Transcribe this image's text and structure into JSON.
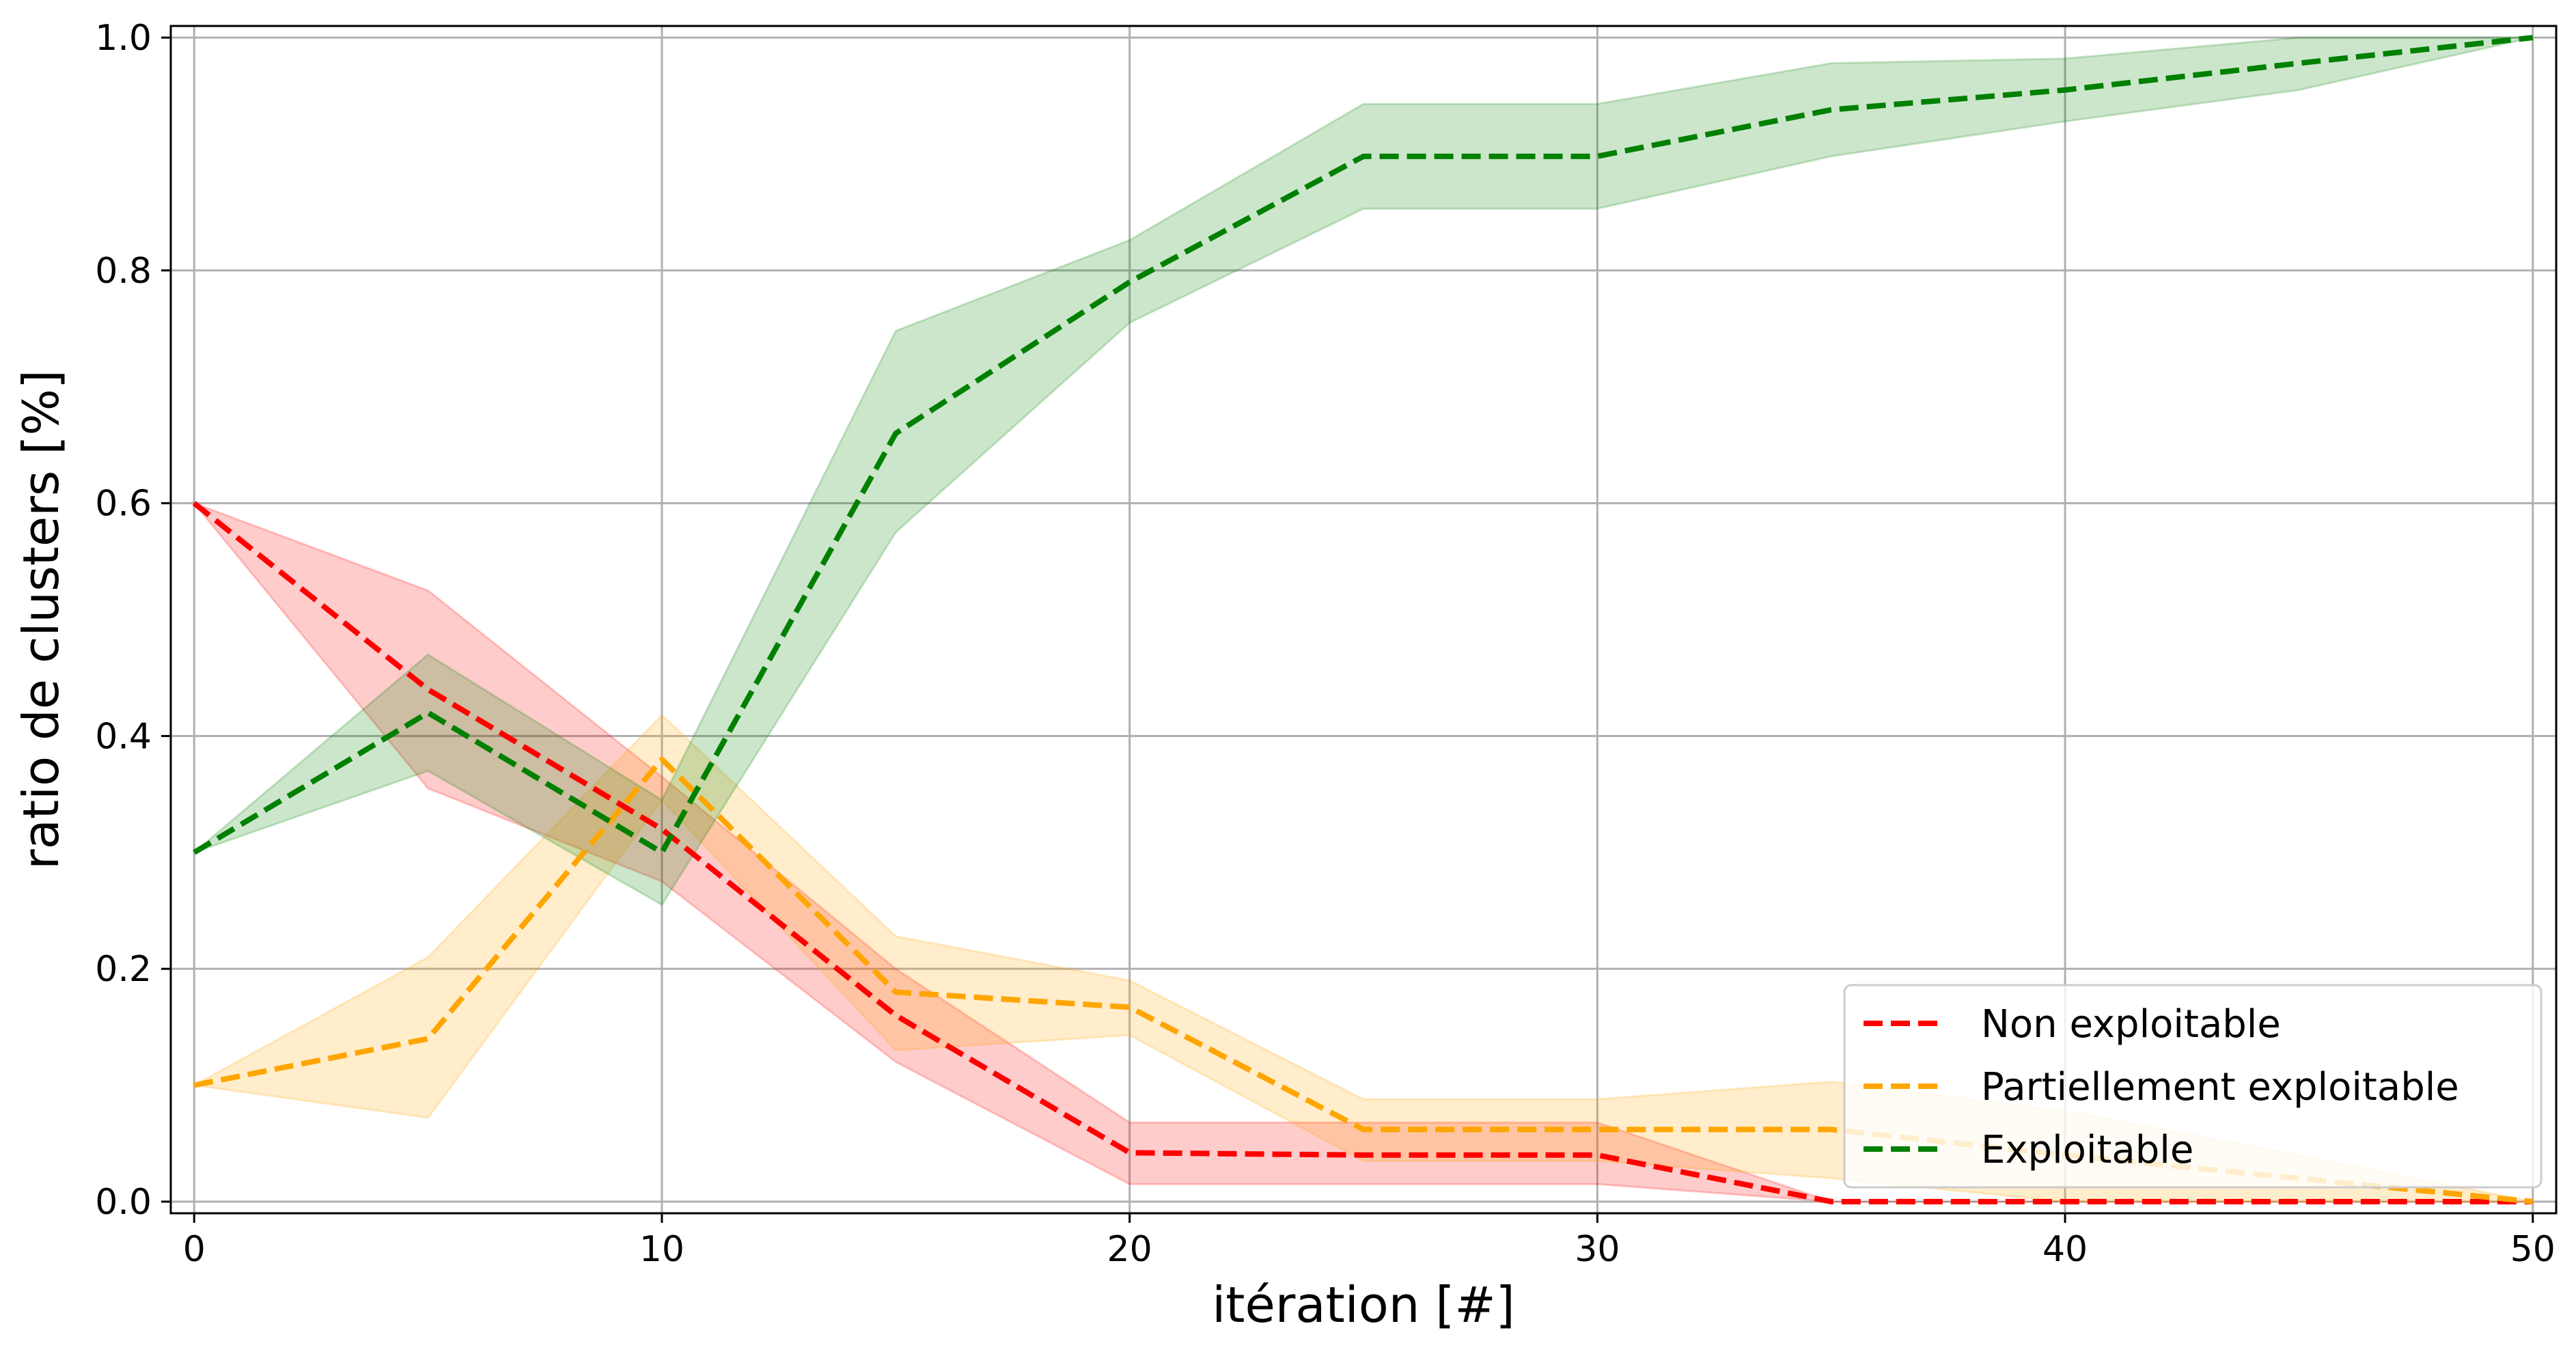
{
  "chart_data": {
    "type": "line",
    "title": "",
    "xlabel": "itération [#]",
    "ylabel": "ratio de clusters [%]",
    "xlim": [
      -0.5,
      50.5
    ],
    "ylim": [
      -0.01,
      1.01
    ],
    "xticks": [
      "0",
      "10",
      "20",
      "30",
      "40",
      "50"
    ],
    "yticks": [
      "0.0",
      "0.2",
      "0.4",
      "0.6",
      "0.8",
      "1.0"
    ],
    "grid": true,
    "legend_position": "lower-right",
    "x": [
      0,
      5,
      10,
      15,
      20,
      25,
      30,
      35,
      40,
      45,
      50
    ],
    "series": [
      {
        "name": "Non exploitable",
        "color": "#ff0000",
        "line_style": "dashed",
        "values": [
          0.6,
          0.44,
          0.32,
          0.16,
          0.042,
          0.04,
          0.04,
          0.0,
          0.0,
          0.0,
          0.0
        ],
        "lower": [
          0.6,
          0.355,
          0.275,
          0.12,
          0.015,
          0.015,
          0.015,
          0.0,
          0.0,
          0.0,
          0.0
        ],
        "upper": [
          0.6,
          0.525,
          0.365,
          0.2,
          0.068,
          0.068,
          0.068,
          0.0,
          0.0,
          0.0,
          0.0
        ]
      },
      {
        "name": "Partiellement exploitable",
        "color": "#ffa500",
        "line_style": "dashed",
        "values": [
          0.1,
          0.14,
          0.38,
          0.18,
          0.167,
          0.062,
          0.062,
          0.062,
          0.04,
          0.02,
          0.0
        ],
        "lower": [
          0.1,
          0.072,
          0.345,
          0.13,
          0.143,
          0.035,
          0.035,
          0.02,
          0.0,
          0.0,
          0.0
        ],
        "upper": [
          0.1,
          0.21,
          0.418,
          0.228,
          0.19,
          0.088,
          0.088,
          0.103,
          0.078,
          0.04,
          0.0
        ]
      },
      {
        "name": "Exploitable",
        "color": "#008000",
        "line_style": "dashed",
        "values": [
          0.3,
          0.42,
          0.3,
          0.66,
          0.79,
          0.898,
          0.898,
          0.938,
          0.955,
          0.978,
          1.0
        ],
        "lower": [
          0.3,
          0.37,
          0.255,
          0.575,
          0.755,
          0.853,
          0.853,
          0.898,
          0.928,
          0.955,
          1.0
        ],
        "upper": [
          0.3,
          0.47,
          0.345,
          0.748,
          0.826,
          0.943,
          0.943,
          0.978,
          0.982,
          1.0,
          1.0
        ]
      }
    ]
  }
}
